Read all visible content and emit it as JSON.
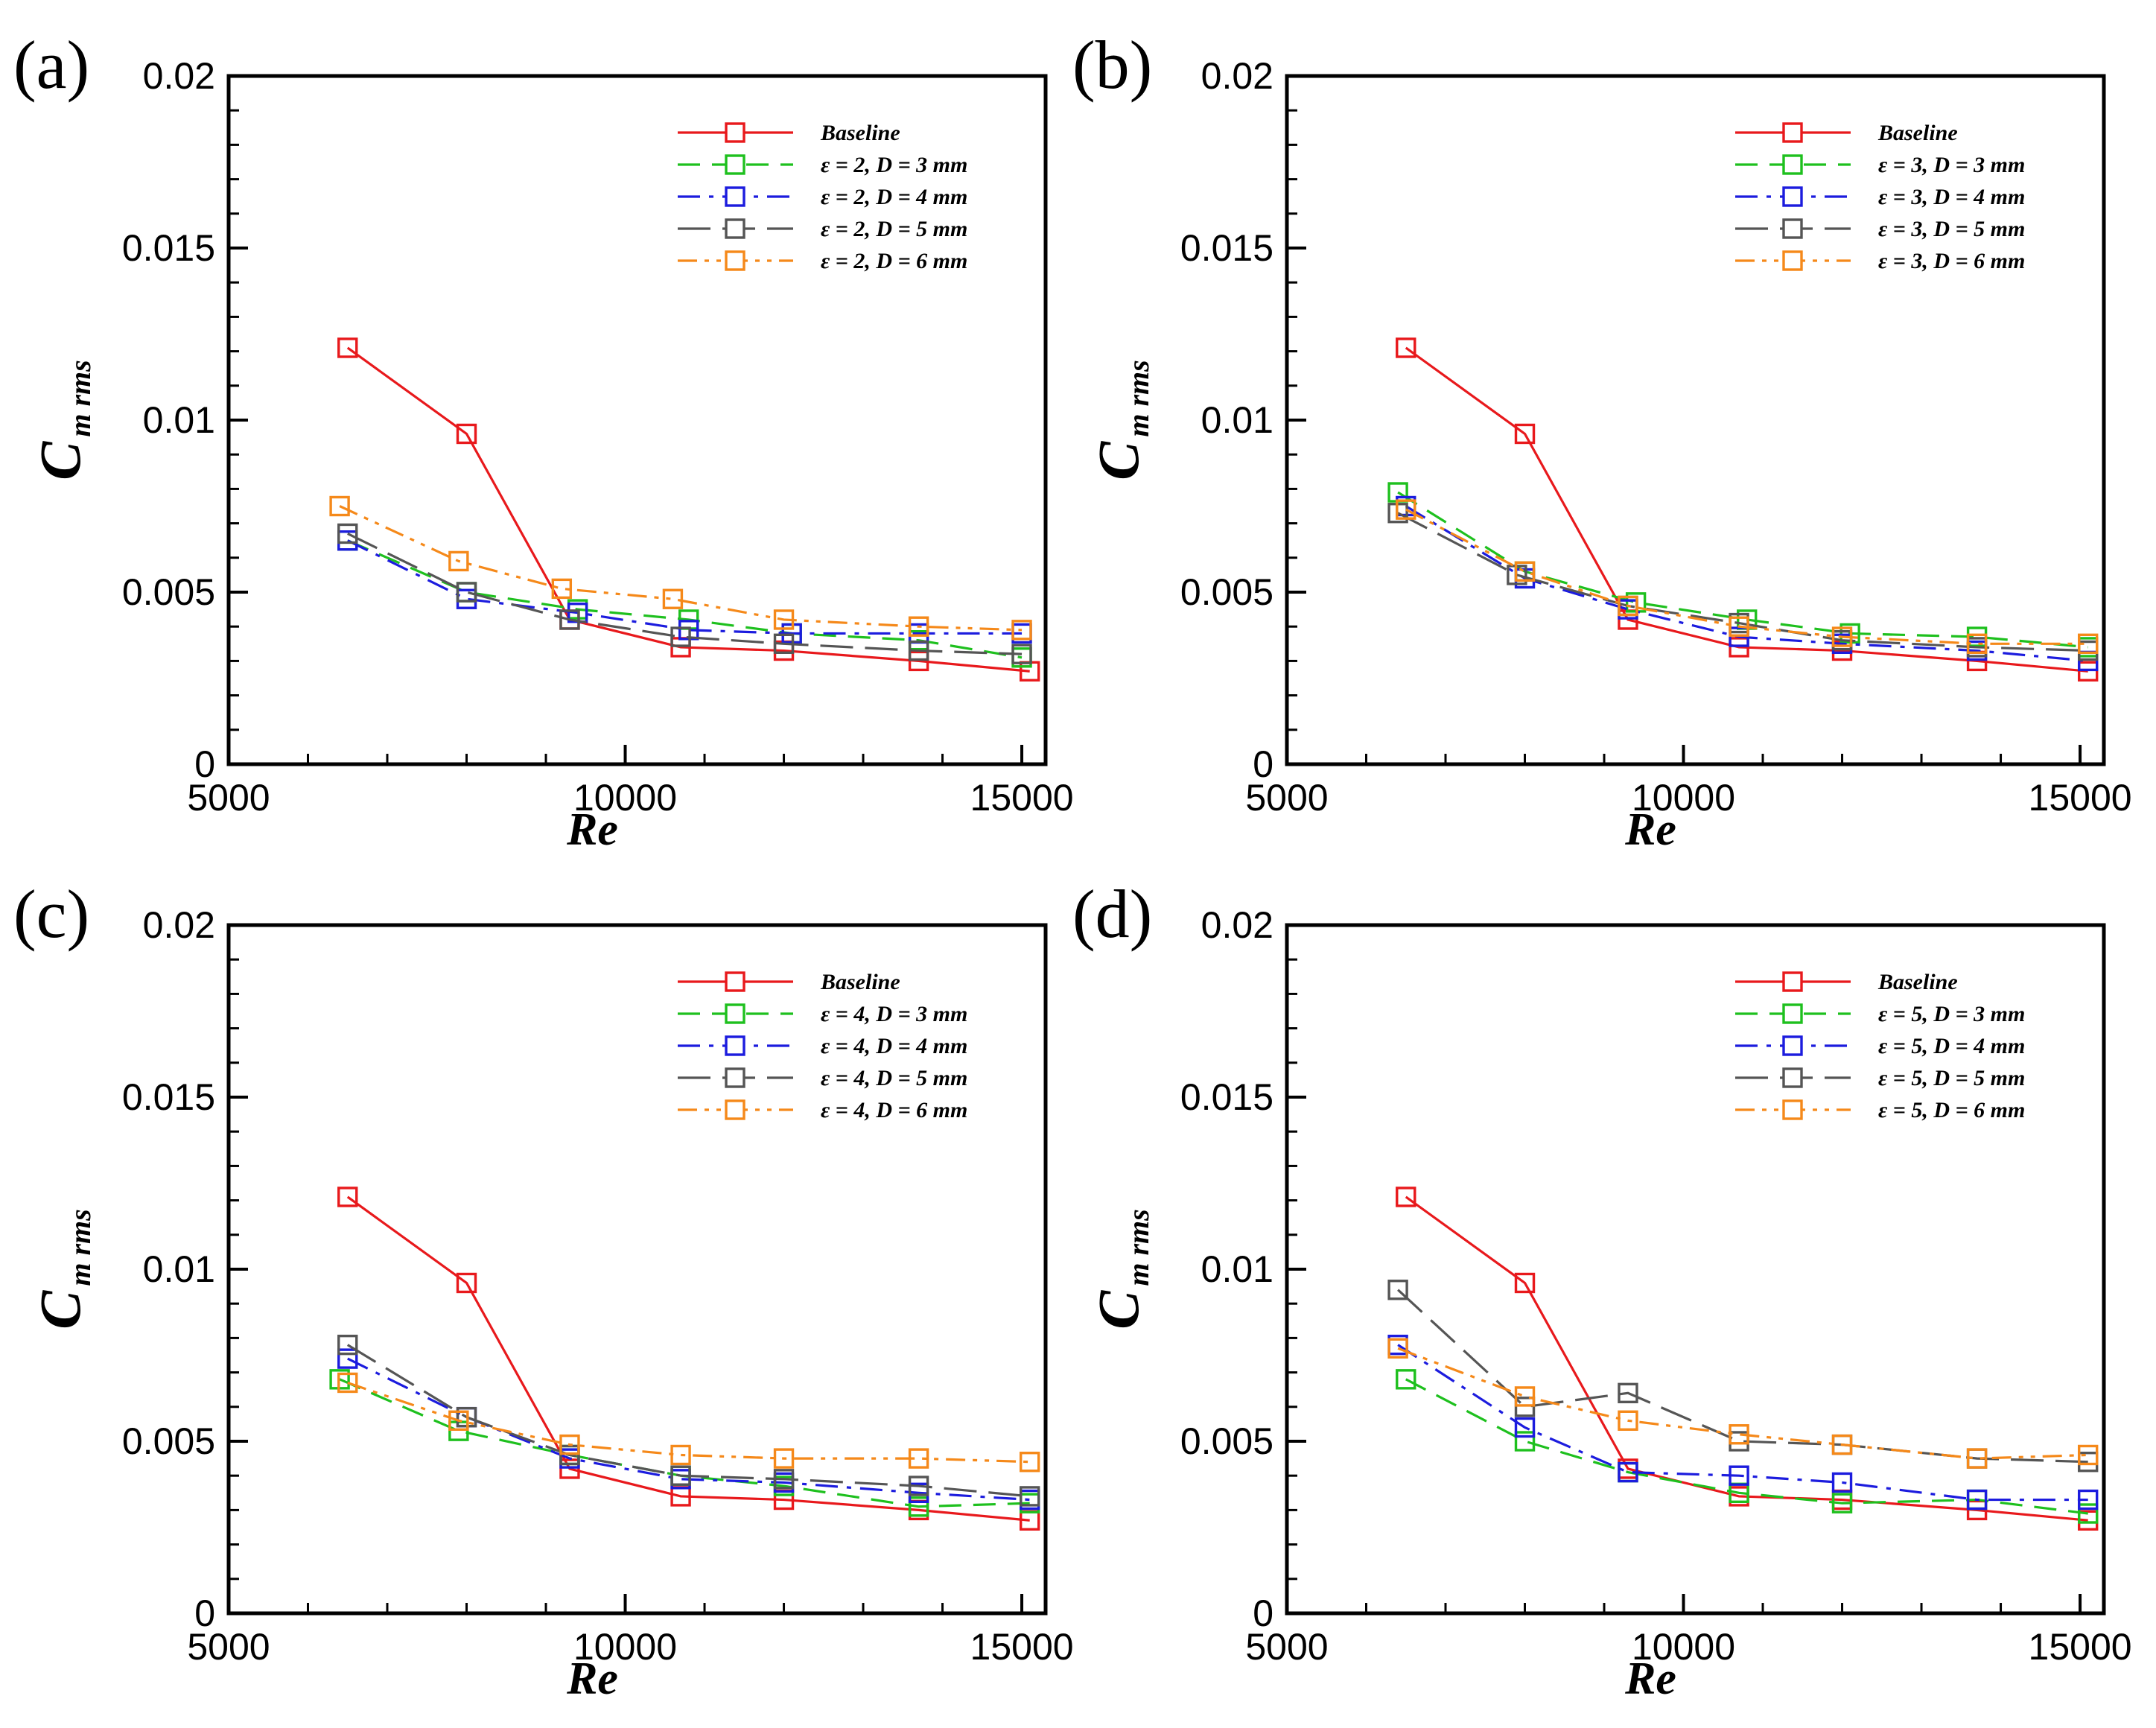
{
  "chart_data": [
    {
      "type": "line",
      "panel_label": "(a)",
      "xlabel": "Re",
      "ylabel_main": "C",
      "ylabel_sub": "m rms",
      "xlim": [
        5000,
        15300
      ],
      "ylim": [
        0,
        0.02
      ],
      "xticks": [
        "5000",
        "10000",
        "15000"
      ],
      "yticks": [
        "0",
        "0.005",
        "0.01",
        "0.015",
        "0.02"
      ],
      "legend_position": "top-right",
      "series": [
        {
          "name": "Baseline",
          "color": "#e8191c",
          "dash": "solid",
          "x": [
            6500,
            8000,
            9300,
            10700,
            12000,
            13700,
            15100
          ],
          "values": [
            0.0121,
            0.0096,
            0.0042,
            0.0034,
            0.0033,
            0.003,
            0.0027
          ]
        },
        {
          "name": "ε = 2, D = 3 mm",
          "color": "#1ec01e",
          "dash": "dash",
          "x": [
            6500,
            8000,
            9400,
            10800,
            12100,
            13700,
            15000
          ],
          "values": [
            0.0065,
            0.005,
            0.0045,
            0.0042,
            0.0038,
            0.0036,
            0.0031
          ]
        },
        {
          "name": "ε = 2, D = 4 mm",
          "color": "#1c1cde",
          "dash": "dashdot",
          "x": [
            6500,
            8000,
            9400,
            10800,
            12100,
            13700,
            15000
          ],
          "values": [
            0.0065,
            0.0048,
            0.0044,
            0.0039,
            0.0038,
            0.0038,
            0.0038
          ]
        },
        {
          "name": "ε = 2, D = 5 mm",
          "color": "#555555",
          "dash": "longdash",
          "x": [
            6500,
            8000,
            9300,
            10700,
            12000,
            13700,
            15000
          ],
          "values": [
            0.0067,
            0.005,
            0.0042,
            0.0037,
            0.0035,
            0.0033,
            0.0032
          ]
        },
        {
          "name": "ε = 2, D = 6 mm",
          "color": "#f5891a",
          "dash": "dashdotdot",
          "x": [
            6400,
            7900,
            9200,
            10600,
            12000,
            13700,
            15000
          ],
          "values": [
            0.0075,
            0.0059,
            0.0051,
            0.0048,
            0.0042,
            0.004,
            0.0039
          ]
        }
      ]
    },
    {
      "type": "line",
      "panel_label": "(b)",
      "xlabel": "Re",
      "ylabel_main": "C",
      "ylabel_sub": "m rms",
      "xlim": [
        5000,
        15300
      ],
      "ylim": [
        0,
        0.02
      ],
      "xticks": [
        "5000",
        "10000",
        "15000"
      ],
      "yticks": [
        "0",
        "0.005",
        "0.01",
        "0.015",
        "0.02"
      ],
      "legend_position": "top-right",
      "series": [
        {
          "name": "Baseline",
          "color": "#e8191c",
          "dash": "solid",
          "x": [
            6500,
            8000,
            9300,
            10700,
            12000,
            13700,
            15100
          ],
          "values": [
            0.0121,
            0.0096,
            0.0042,
            0.0034,
            0.0033,
            0.003,
            0.0027
          ]
        },
        {
          "name": "ε = 3, D = 3 mm",
          "color": "#1ec01e",
          "dash": "dash",
          "x": [
            6400,
            8000,
            9400,
            10800,
            12100,
            13700,
            15100
          ],
          "values": [
            0.0079,
            0.0056,
            0.0047,
            0.0042,
            0.0038,
            0.0037,
            0.0034
          ]
        },
        {
          "name": "ε = 3, D = 4 mm",
          "color": "#1c1cde",
          "dash": "dashdot",
          "x": [
            6500,
            8000,
            9300,
            10700,
            12000,
            13700,
            15100
          ],
          "values": [
            0.0075,
            0.0054,
            0.0045,
            0.0037,
            0.0035,
            0.0033,
            0.003
          ]
        },
        {
          "name": "ε = 3, D = 5 mm",
          "color": "#555555",
          "dash": "longdash",
          "x": [
            6400,
            7900,
            9300,
            10700,
            12000,
            13700,
            15100
          ],
          "values": [
            0.0073,
            0.0055,
            0.0046,
            0.0041,
            0.0036,
            0.0034,
            0.0033
          ]
        },
        {
          "name": "ε = 3, D = 6 mm",
          "color": "#f5891a",
          "dash": "dashdotdot",
          "x": [
            6500,
            8000,
            9300,
            10700,
            12000,
            13700,
            15100
          ],
          "values": [
            0.0074,
            0.0056,
            0.0046,
            0.004,
            0.0037,
            0.0035,
            0.0035
          ]
        }
      ]
    },
    {
      "type": "line",
      "panel_label": "(c)",
      "xlabel": "Re",
      "ylabel_main": "C",
      "ylabel_sub": "m rms",
      "xlim": [
        5000,
        15300
      ],
      "ylim": [
        0,
        0.02
      ],
      "xticks": [
        "5000",
        "10000",
        "15000"
      ],
      "yticks": [
        "0",
        "0.005",
        "0.01",
        "0.015",
        "0.02"
      ],
      "legend_position": "top-right",
      "series": [
        {
          "name": "Baseline",
          "color": "#e8191c",
          "dash": "solid",
          "x": [
            6500,
            8000,
            9300,
            10700,
            12000,
            13700,
            15100
          ],
          "values": [
            0.0121,
            0.0096,
            0.0042,
            0.0034,
            0.0033,
            0.003,
            0.0027
          ]
        },
        {
          "name": "ε = 4, D = 3 mm",
          "color": "#1ec01e",
          "dash": "dash",
          "x": [
            6400,
            7900,
            9300,
            10700,
            12000,
            13700,
            15100
          ],
          "values": [
            0.0068,
            0.0053,
            0.0046,
            0.004,
            0.0037,
            0.0031,
            0.0032
          ]
        },
        {
          "name": "ε = 4, D = 4 mm",
          "color": "#1c1cde",
          "dash": "dashdot",
          "x": [
            6500,
            8000,
            9300,
            10700,
            12000,
            13700,
            15100
          ],
          "values": [
            0.0074,
            0.0057,
            0.0045,
            0.0039,
            0.0038,
            0.0035,
            0.0033
          ]
        },
        {
          "name": "ε = 4, D = 5 mm",
          "color": "#555555",
          "dash": "longdash",
          "x": [
            6500,
            8000,
            9300,
            10700,
            12000,
            13700,
            15100
          ],
          "values": [
            0.0078,
            0.0057,
            0.0046,
            0.004,
            0.0039,
            0.0037,
            0.0034
          ]
        },
        {
          "name": "ε = 4, D = 6 mm",
          "color": "#f5891a",
          "dash": "dashdotdot",
          "x": [
            6500,
            7900,
            9300,
            10700,
            12000,
            13700,
            15100
          ],
          "values": [
            0.0067,
            0.0056,
            0.0049,
            0.0046,
            0.0045,
            0.0045,
            0.0044
          ]
        }
      ]
    },
    {
      "type": "line",
      "panel_label": "(d)",
      "xlabel": "Re",
      "ylabel_main": "C",
      "ylabel_sub": "m rms",
      "xlim": [
        5000,
        15300
      ],
      "ylim": [
        0,
        0.02
      ],
      "xticks": [
        "5000",
        "10000",
        "15000"
      ],
      "yticks": [
        "0",
        "0.005",
        "0.01",
        "0.015",
        "0.02"
      ],
      "legend_position": "top-right",
      "series": [
        {
          "name": "Baseline",
          "color": "#e8191c",
          "dash": "solid",
          "x": [
            6500,
            8000,
            9300,
            10700,
            12000,
            13700,
            15100
          ],
          "values": [
            0.0121,
            0.0096,
            0.0042,
            0.0034,
            0.0033,
            0.003,
            0.0027
          ]
        },
        {
          "name": "ε = 5, D = 3 mm",
          "color": "#1ec01e",
          "dash": "dash",
          "x": [
            6500,
            8000,
            9300,
            10700,
            12000,
            13700,
            15100
          ],
          "values": [
            0.0068,
            0.005,
            0.0041,
            0.0035,
            0.0032,
            0.0033,
            0.0029
          ]
        },
        {
          "name": "ε = 5, D = 4 mm",
          "color": "#1c1cde",
          "dash": "dashdot",
          "x": [
            6400,
            8000,
            9300,
            10700,
            12000,
            13700,
            15100
          ],
          "values": [
            0.0078,
            0.0054,
            0.0041,
            0.004,
            0.0038,
            0.0033,
            0.0033
          ]
        },
        {
          "name": "ε = 5, D = 5 mm",
          "color": "#555555",
          "dash": "longdash",
          "x": [
            6400,
            8000,
            9300,
            10700,
            12000,
            13700,
            15100
          ],
          "values": [
            0.0094,
            0.006,
            0.0064,
            0.005,
            0.0049,
            0.0045,
            0.0044
          ]
        },
        {
          "name": "ε = 5, D = 6 mm",
          "color": "#f5891a",
          "dash": "dashdotdot",
          "x": [
            6400,
            8000,
            9300,
            10700,
            12000,
            13700,
            15100
          ],
          "values": [
            0.0077,
            0.0063,
            0.0056,
            0.0052,
            0.0049,
            0.0045,
            0.0046
          ]
        }
      ]
    }
  ]
}
